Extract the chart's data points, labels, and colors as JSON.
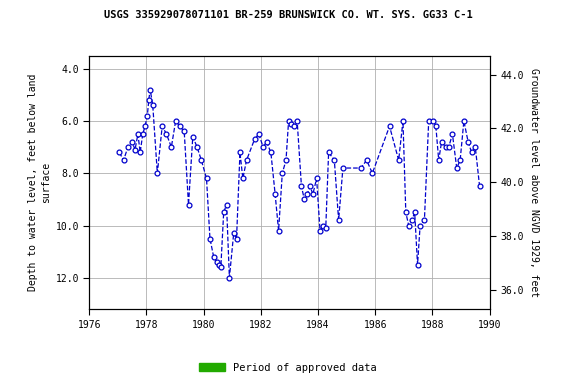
{
  "title": "USGS 335929078071101 BR-259 BRUNSWICK CO. WT. SYS. GG33 C-1",
  "ylabel_left": "Depth to water level, feet below land\nsurface",
  "ylabel_right": "Groundwater level above NGVD 1929, feet",
  "ylim_left": [
    13.2,
    3.5
  ],
  "ylim_right": [
    35.3,
    44.7
  ],
  "xlim": [
    1976,
    1990
  ],
  "xticks": [
    1976,
    1978,
    1980,
    1982,
    1984,
    1986,
    1988,
    1990
  ],
  "yticks_left": [
    4.0,
    6.0,
    8.0,
    10.0,
    12.0
  ],
  "yticks_right": [
    44.0,
    42.0,
    40.0,
    38.0,
    36.0
  ],
  "line_color": "#0000CC",
  "approved_bar_color": "#22AA00",
  "approved_bar_xstart": 1976.8,
  "approved_bar_xend": 1989.3,
  "legend_label": "Period of approved data",
  "bg_color": "#e8e8e8",
  "x_data": [
    1977.05,
    1977.2,
    1977.35,
    1977.5,
    1977.6,
    1977.7,
    1977.78,
    1977.87,
    1977.95,
    1978.03,
    1978.08,
    1978.13,
    1978.22,
    1978.38,
    1978.55,
    1978.7,
    1978.87,
    1979.02,
    1979.17,
    1979.32,
    1979.47,
    1979.62,
    1979.77,
    1979.92,
    1980.1,
    1980.22,
    1980.35,
    1980.45,
    1980.52,
    1980.6,
    1980.7,
    1980.8,
    1980.9,
    1981.05,
    1981.15,
    1981.27,
    1981.37,
    1981.5,
    1981.78,
    1981.93,
    1982.08,
    1982.2,
    1982.35,
    1982.5,
    1982.62,
    1982.75,
    1982.88,
    1982.97,
    1983.07,
    1983.17,
    1983.27,
    1983.42,
    1983.52,
    1983.62,
    1983.72,
    1983.82,
    1983.95,
    1984.07,
    1984.17,
    1984.27,
    1984.37,
    1984.57,
    1984.72,
    1984.87,
    1985.5,
    1985.7,
    1985.9,
    1986.5,
    1986.82,
    1986.97,
    1987.07,
    1987.17,
    1987.28,
    1987.38,
    1987.48,
    1987.57,
    1987.72,
    1987.87,
    1988.02,
    1988.12,
    1988.22,
    1988.32,
    1988.47,
    1988.57,
    1988.7,
    1988.85,
    1988.97,
    1989.1,
    1989.25,
    1989.37,
    1989.5,
    1989.65
  ],
  "y_data": [
    7.2,
    7.5,
    7.0,
    6.8,
    7.1,
    6.5,
    7.2,
    6.5,
    6.2,
    5.8,
    5.2,
    4.8,
    5.4,
    8.0,
    6.2,
    6.5,
    7.0,
    6.0,
    6.2,
    6.4,
    9.2,
    6.6,
    7.0,
    7.5,
    8.2,
    10.5,
    11.2,
    11.4,
    11.5,
    11.6,
    9.5,
    9.2,
    12.0,
    10.3,
    10.5,
    7.2,
    8.2,
    7.5,
    6.7,
    6.5,
    7.0,
    6.8,
    7.2,
    8.8,
    10.2,
    8.0,
    7.5,
    6.0,
    6.1,
    6.2,
    6.0,
    8.5,
    9.0,
    8.8,
    8.5,
    8.8,
    8.2,
    10.2,
    10.0,
    10.1,
    7.2,
    7.5,
    9.8,
    7.8,
    7.8,
    7.5,
    8.0,
    6.2,
    7.5,
    6.0,
    9.5,
    10.0,
    9.8,
    9.5,
    11.5,
    10.0,
    9.8,
    6.0,
    6.0,
    6.2,
    7.5,
    6.8,
    7.0,
    7.0,
    6.5,
    7.8,
    7.5,
    6.0,
    6.8,
    7.2,
    7.0,
    8.5
  ]
}
